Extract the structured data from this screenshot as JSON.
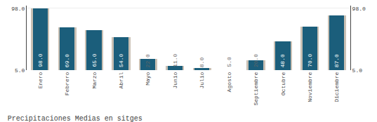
{
  "chart_data": {
    "type": "bar",
    "title": "Precipitaciones Medias en sitges",
    "categories": [
      "Enero",
      "Febrero",
      "Marzo",
      "Abril",
      "Mayo",
      "Junio",
      "Julio",
      "Agosto",
      "Septiembre",
      "Octubre",
      "Noviembre",
      "Diciembre"
    ],
    "series": [
      {
        "color": "#c9c0b4",
        "values": [
          98.0,
          69.0,
          65.0,
          54.0,
          22.0,
          11.0,
          8.0,
          5.0,
          20.0,
          48.0,
          70.0,
          87.0
        ]
      },
      {
        "color": "#1b5e7b",
        "values": [
          98.0,
          69.0,
          65.0,
          54.0,
          22.0,
          11.0,
          8.0,
          5.0,
          20.0,
          48.0,
          70.0,
          87.0
        ],
        "value_labels": [
          "98.0",
          "69.0",
          "65.0",
          "54.0",
          "22.0",
          "11.0",
          "8.0",
          "5.0",
          "20.0",
          "48.0",
          "70.0",
          "87.0"
        ]
      }
    ],
    "ylim": [
      5.0,
      101.92
    ],
    "yticks": [
      {
        "value": 5.0,
        "label": "5.0"
      },
      {
        "value": 98.0,
        "label": "98.0"
      }
    ],
    "y2lim": [
      5.0,
      101.92
    ],
    "y2ticks": [
      {
        "value": 5.0,
        "label": "5.0"
      },
      {
        "value": 98.0,
        "label": "98.0"
      }
    ],
    "grid": true,
    "data_labels": true
  }
}
